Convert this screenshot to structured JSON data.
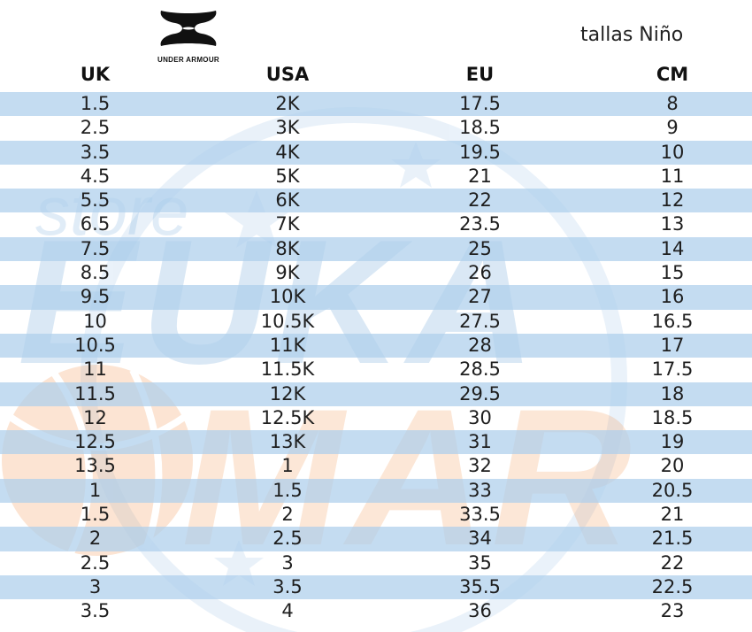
{
  "brand": {
    "logo_text": "UNDER ARMOUR"
  },
  "subtitle": "tallas Niño",
  "columns": [
    "UK",
    "USA",
    "EU",
    "CM"
  ],
  "rows": [
    [
      "1.5",
      "2K",
      "17.5",
      "8"
    ],
    [
      "2.5",
      "3K",
      "18.5",
      "9"
    ],
    [
      "3.5",
      "4K",
      "19.5",
      "10"
    ],
    [
      "4.5",
      "5K",
      "21",
      "11"
    ],
    [
      "5.5",
      "6K",
      "22",
      "12"
    ],
    [
      "6.5",
      "7K",
      "23.5",
      "13"
    ],
    [
      "7.5",
      "8K",
      "25",
      "14"
    ],
    [
      "8.5",
      "9K",
      "26",
      "15"
    ],
    [
      "9.5",
      "10K",
      "27",
      "16"
    ],
    [
      "10",
      "10.5K",
      "27.5",
      "16.5"
    ],
    [
      "10.5",
      "11K",
      "28",
      "17"
    ],
    [
      "11",
      "11.5K",
      "28.5",
      "17.5"
    ],
    [
      "11.5",
      "12K",
      "29.5",
      "18"
    ],
    [
      "12",
      "12.5K",
      "30",
      "18.5"
    ],
    [
      "12.5",
      "13K",
      "31",
      "19"
    ],
    [
      "13.5",
      "1",
      "32",
      "20"
    ],
    [
      "1",
      "1.5",
      "33",
      "20.5"
    ],
    [
      "1.5",
      "2",
      "33.5",
      "21"
    ],
    [
      "2",
      "2.5",
      "34",
      "21.5"
    ],
    [
      "2.5",
      "3",
      "35",
      "22"
    ],
    [
      "3",
      "3.5",
      "35.5",
      "22.5"
    ],
    [
      "3.5",
      "4",
      "36",
      "23"
    ]
  ],
  "watermark": {
    "top_word": "store",
    "main_word": "EUKA",
    "accent_word": "MAR"
  },
  "colors": {
    "row_shade": "#adcfec",
    "watermark_blue": "#5b9bd5",
    "watermark_orange": "#f28a3c"
  }
}
